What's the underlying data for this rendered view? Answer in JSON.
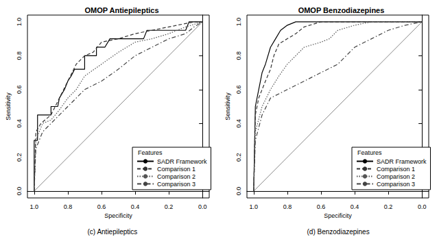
{
  "chart_data": [
    {
      "type": "line",
      "title": "OMOP Antiepileptics",
      "caption": "(c) Antiepileptics",
      "x_label": "Specificity",
      "y_label": "Sensitivity",
      "legend_title": "Features",
      "legend": "bottom-right",
      "grid": false,
      "xlim": [
        1.04,
        -0.04
      ],
      "xticks": [
        {
          "value": 1.0,
          "label": "1.0"
        },
        {
          "value": 0.8,
          "label": "0.8"
        },
        {
          "value": 0.6,
          "label": "0.6"
        },
        {
          "value": 0.4,
          "label": "0.4"
        },
        {
          "value": 0.2,
          "label": "0.2"
        },
        {
          "value": 0.0,
          "label": "0.0"
        }
      ],
      "ylim": [
        -0.04,
        1.04
      ],
      "yticks": [
        {
          "value": 0.0,
          "label": "0.0"
        },
        {
          "value": 0.2,
          "label": "0.2"
        },
        {
          "value": 0.4,
          "label": "0.4"
        },
        {
          "value": 0.6,
          "label": "0.6"
        },
        {
          "value": 0.8,
          "label": "0.8"
        },
        {
          "value": 1.0,
          "label": "1.0"
        }
      ],
      "reference_line": {
        "x": [
          1.0,
          0.0
        ],
        "values": [
          0.0,
          1.0
        ],
        "color": "#888888"
      },
      "series": [
        {
          "name": "SADR Framework",
          "color": "#000000",
          "line_style": "solid",
          "x": [
            1,
            1,
            0.98,
            0.98,
            0.9,
            0.9,
            0.86,
            0.85,
            0.82,
            0.8,
            0.78,
            0.76,
            0.7,
            0.7,
            0.63,
            0.63,
            0.58,
            0.55,
            0.35,
            0.33,
            0.1,
            0.08,
            0
          ],
          "values": [
            0,
            0.3,
            0.3,
            0.45,
            0.45,
            0.5,
            0.5,
            0.55,
            0.6,
            0.65,
            0.68,
            0.72,
            0.72,
            0.8,
            0.8,
            0.85,
            0.85,
            0.9,
            0.9,
            0.95,
            0.95,
            1.0,
            1.0
          ]
        },
        {
          "name": "Comparison 1",
          "color": "#333333",
          "line_style": "dashed",
          "x": [
            1,
            0.99,
            0.96,
            0.9,
            0.85,
            0.8,
            0.75,
            0.7,
            0.65,
            0.6,
            0.5,
            0.4,
            0.3,
            0.15,
            0.05,
            0
          ],
          "values": [
            0,
            0.35,
            0.4,
            0.45,
            0.55,
            0.65,
            0.75,
            0.8,
            0.82,
            0.88,
            0.9,
            0.93,
            0.95,
            0.98,
            1.0,
            1.0
          ]
        },
        {
          "name": "Comparison 2",
          "color": "#555555",
          "line_style": "dotted",
          "x": [
            1,
            0.99,
            0.95,
            0.9,
            0.85,
            0.8,
            0.75,
            0.7,
            0.6,
            0.5,
            0.4,
            0.3,
            0.2,
            0.1,
            0
          ],
          "values": [
            0,
            0.3,
            0.4,
            0.42,
            0.48,
            0.55,
            0.6,
            0.68,
            0.75,
            0.82,
            0.88,
            0.9,
            0.93,
            0.97,
            1.0
          ]
        },
        {
          "name": "Comparison 3",
          "color": "#444444",
          "line_style": "dashdot",
          "x": [
            1,
            0.99,
            0.95,
            0.9,
            0.85,
            0.8,
            0.75,
            0.7,
            0.6,
            0.5,
            0.4,
            0.3,
            0.2,
            0.1,
            0.05,
            0
          ],
          "values": [
            0,
            0.25,
            0.35,
            0.4,
            0.45,
            0.5,
            0.55,
            0.6,
            0.65,
            0.72,
            0.8,
            0.85,
            0.9,
            0.93,
            0.97,
            1.0
          ]
        }
      ]
    },
    {
      "type": "line",
      "title": "OMOP Benzodiazepines",
      "caption": "(d) Benzodiazepines",
      "x_label": "Specificity",
      "y_label": "Sensitivity",
      "legend_title": "Features",
      "legend": "bottom-right",
      "grid": false,
      "xlim": [
        1.04,
        -0.04
      ],
      "xticks": [
        {
          "value": 1.0,
          "label": "1.0"
        },
        {
          "value": 0.8,
          "label": "0.8"
        },
        {
          "value": 0.6,
          "label": "0.6"
        },
        {
          "value": 0.4,
          "label": "0.4"
        },
        {
          "value": 0.2,
          "label": "0.2"
        },
        {
          "value": 0.0,
          "label": "0.0"
        }
      ],
      "ylim": [
        -0.04,
        1.04
      ],
      "yticks": [
        {
          "value": 0.0,
          "label": "0.0"
        },
        {
          "value": 0.2,
          "label": "0.2"
        },
        {
          "value": 0.4,
          "label": "0.4"
        },
        {
          "value": 0.6,
          "label": "0.6"
        },
        {
          "value": 0.8,
          "label": "0.8"
        },
        {
          "value": 1.0,
          "label": "1.0"
        }
      ],
      "reference_line": {
        "x": [
          1.0,
          0.0
        ],
        "values": [
          0.0,
          1.0
        ],
        "color": "#888888"
      },
      "series": [
        {
          "name": "SADR Framework",
          "color": "#000000",
          "line_style": "solid",
          "x": [
            1,
            0.99,
            0.97,
            0.95,
            0.93,
            0.9,
            0.87,
            0.84,
            0.8,
            0.75,
            0
          ],
          "values": [
            0,
            0.5,
            0.6,
            0.7,
            0.75,
            0.85,
            0.9,
            0.95,
            0.98,
            1.0,
            1.0
          ]
        },
        {
          "name": "Comparison 1",
          "color": "#333333",
          "line_style": "dashed",
          "x": [
            1,
            0.99,
            0.97,
            0.93,
            0.9,
            0.88,
            0.85,
            0.8,
            0.75,
            0.7,
            0.6,
            0
          ],
          "values": [
            0,
            0.45,
            0.55,
            0.65,
            0.72,
            0.8,
            0.87,
            0.9,
            0.93,
            0.97,
            1.0,
            1.0
          ]
        },
        {
          "name": "Comparison 2",
          "color": "#555555",
          "line_style": "dotted",
          "x": [
            1,
            0.99,
            0.95,
            0.9,
            0.85,
            0.8,
            0.75,
            0.7,
            0.6,
            0.55,
            0.5,
            0.4,
            0.3,
            0
          ],
          "values": [
            0,
            0.35,
            0.5,
            0.6,
            0.68,
            0.75,
            0.8,
            0.85,
            0.88,
            0.9,
            0.95,
            0.98,
            1.0,
            1.0
          ]
        },
        {
          "name": "Comparison 3",
          "color": "#444444",
          "line_style": "dashdot",
          "x": [
            1,
            0.99,
            0.95,
            0.9,
            0.8,
            0.7,
            0.6,
            0.5,
            0.45,
            0.4,
            0.3,
            0.2,
            0.1,
            0
          ],
          "values": [
            0,
            0.3,
            0.45,
            0.55,
            0.6,
            0.65,
            0.7,
            0.75,
            0.8,
            0.85,
            0.9,
            0.95,
            0.98,
            1.0
          ]
        }
      ]
    }
  ]
}
